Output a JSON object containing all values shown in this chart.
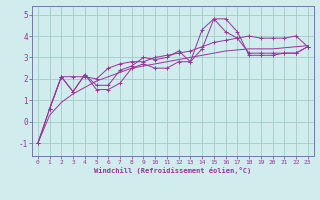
{
  "xlabel": "Windchill (Refroidissement éolien,°C)",
  "bg_color": "#d0ecec",
  "line_color": "#993399",
  "grid_color": "#a0cccc",
  "axis_color": "#7777aa",
  "x_ticks": [
    0,
    1,
    2,
    3,
    4,
    5,
    6,
    7,
    8,
    9,
    10,
    11,
    12,
    13,
    14,
    15,
    16,
    17,
    18,
    19,
    20,
    21,
    22,
    23
  ],
  "y_ticks": [
    -1,
    0,
    1,
    2,
    3,
    4,
    5
  ],
  "ylim": [
    -1.6,
    5.4
  ],
  "xlim": [
    -0.5,
    23.5
  ],
  "line1_x": [
    0,
    1,
    2,
    3,
    4,
    5,
    6,
    7,
    8,
    9,
    10,
    11,
    12,
    13,
    14,
    15,
    16,
    17,
    18,
    19,
    20,
    21,
    22,
    23
  ],
  "line1_y": [
    -1.0,
    0.6,
    2.1,
    1.4,
    2.2,
    1.7,
    1.7,
    2.4,
    2.6,
    3.0,
    2.9,
    3.0,
    3.3,
    2.8,
    4.3,
    4.8,
    4.2,
    3.9,
    3.2,
    3.2,
    3.2,
    3.2,
    3.2,
    3.5
  ],
  "line2_x": [
    0,
    1,
    2,
    3,
    4,
    5,
    6,
    7,
    8,
    9,
    10,
    11,
    12,
    13,
    14,
    15,
    16,
    17,
    18,
    19,
    20,
    21,
    22,
    23
  ],
  "line2_y": [
    -1.0,
    0.6,
    2.1,
    2.1,
    2.1,
    2.0,
    2.5,
    2.7,
    2.8,
    2.8,
    3.0,
    3.1,
    3.2,
    3.3,
    3.5,
    3.7,
    3.8,
    3.9,
    4.0,
    3.9,
    3.9,
    3.9,
    4.0,
    3.5
  ],
  "line3_x": [
    1,
    2,
    3,
    4,
    5,
    6,
    7,
    8,
    9,
    10,
    11,
    12,
    13,
    14,
    15,
    16,
    17,
    18,
    19,
    20,
    21,
    22,
    23
  ],
  "line3_y": [
    0.6,
    2.1,
    1.4,
    2.2,
    1.5,
    1.5,
    1.8,
    2.5,
    2.7,
    2.5,
    2.5,
    2.8,
    2.8,
    3.4,
    4.8,
    4.8,
    4.2,
    3.1,
    3.1,
    3.1,
    3.2,
    3.2,
    3.5
  ],
  "line4_x": [
    0,
    1,
    2,
    3,
    4,
    5,
    6,
    7,
    8,
    9,
    10,
    11,
    12,
    13,
    14,
    15,
    16,
    17,
    18,
    19,
    20,
    21,
    22,
    23
  ],
  "line4_y": [
    -1.0,
    0.3,
    0.9,
    1.3,
    1.6,
    1.9,
    2.1,
    2.3,
    2.5,
    2.6,
    2.7,
    2.8,
    2.9,
    3.0,
    3.1,
    3.2,
    3.3,
    3.35,
    3.4,
    3.4,
    3.4,
    3.45,
    3.5,
    3.55
  ]
}
